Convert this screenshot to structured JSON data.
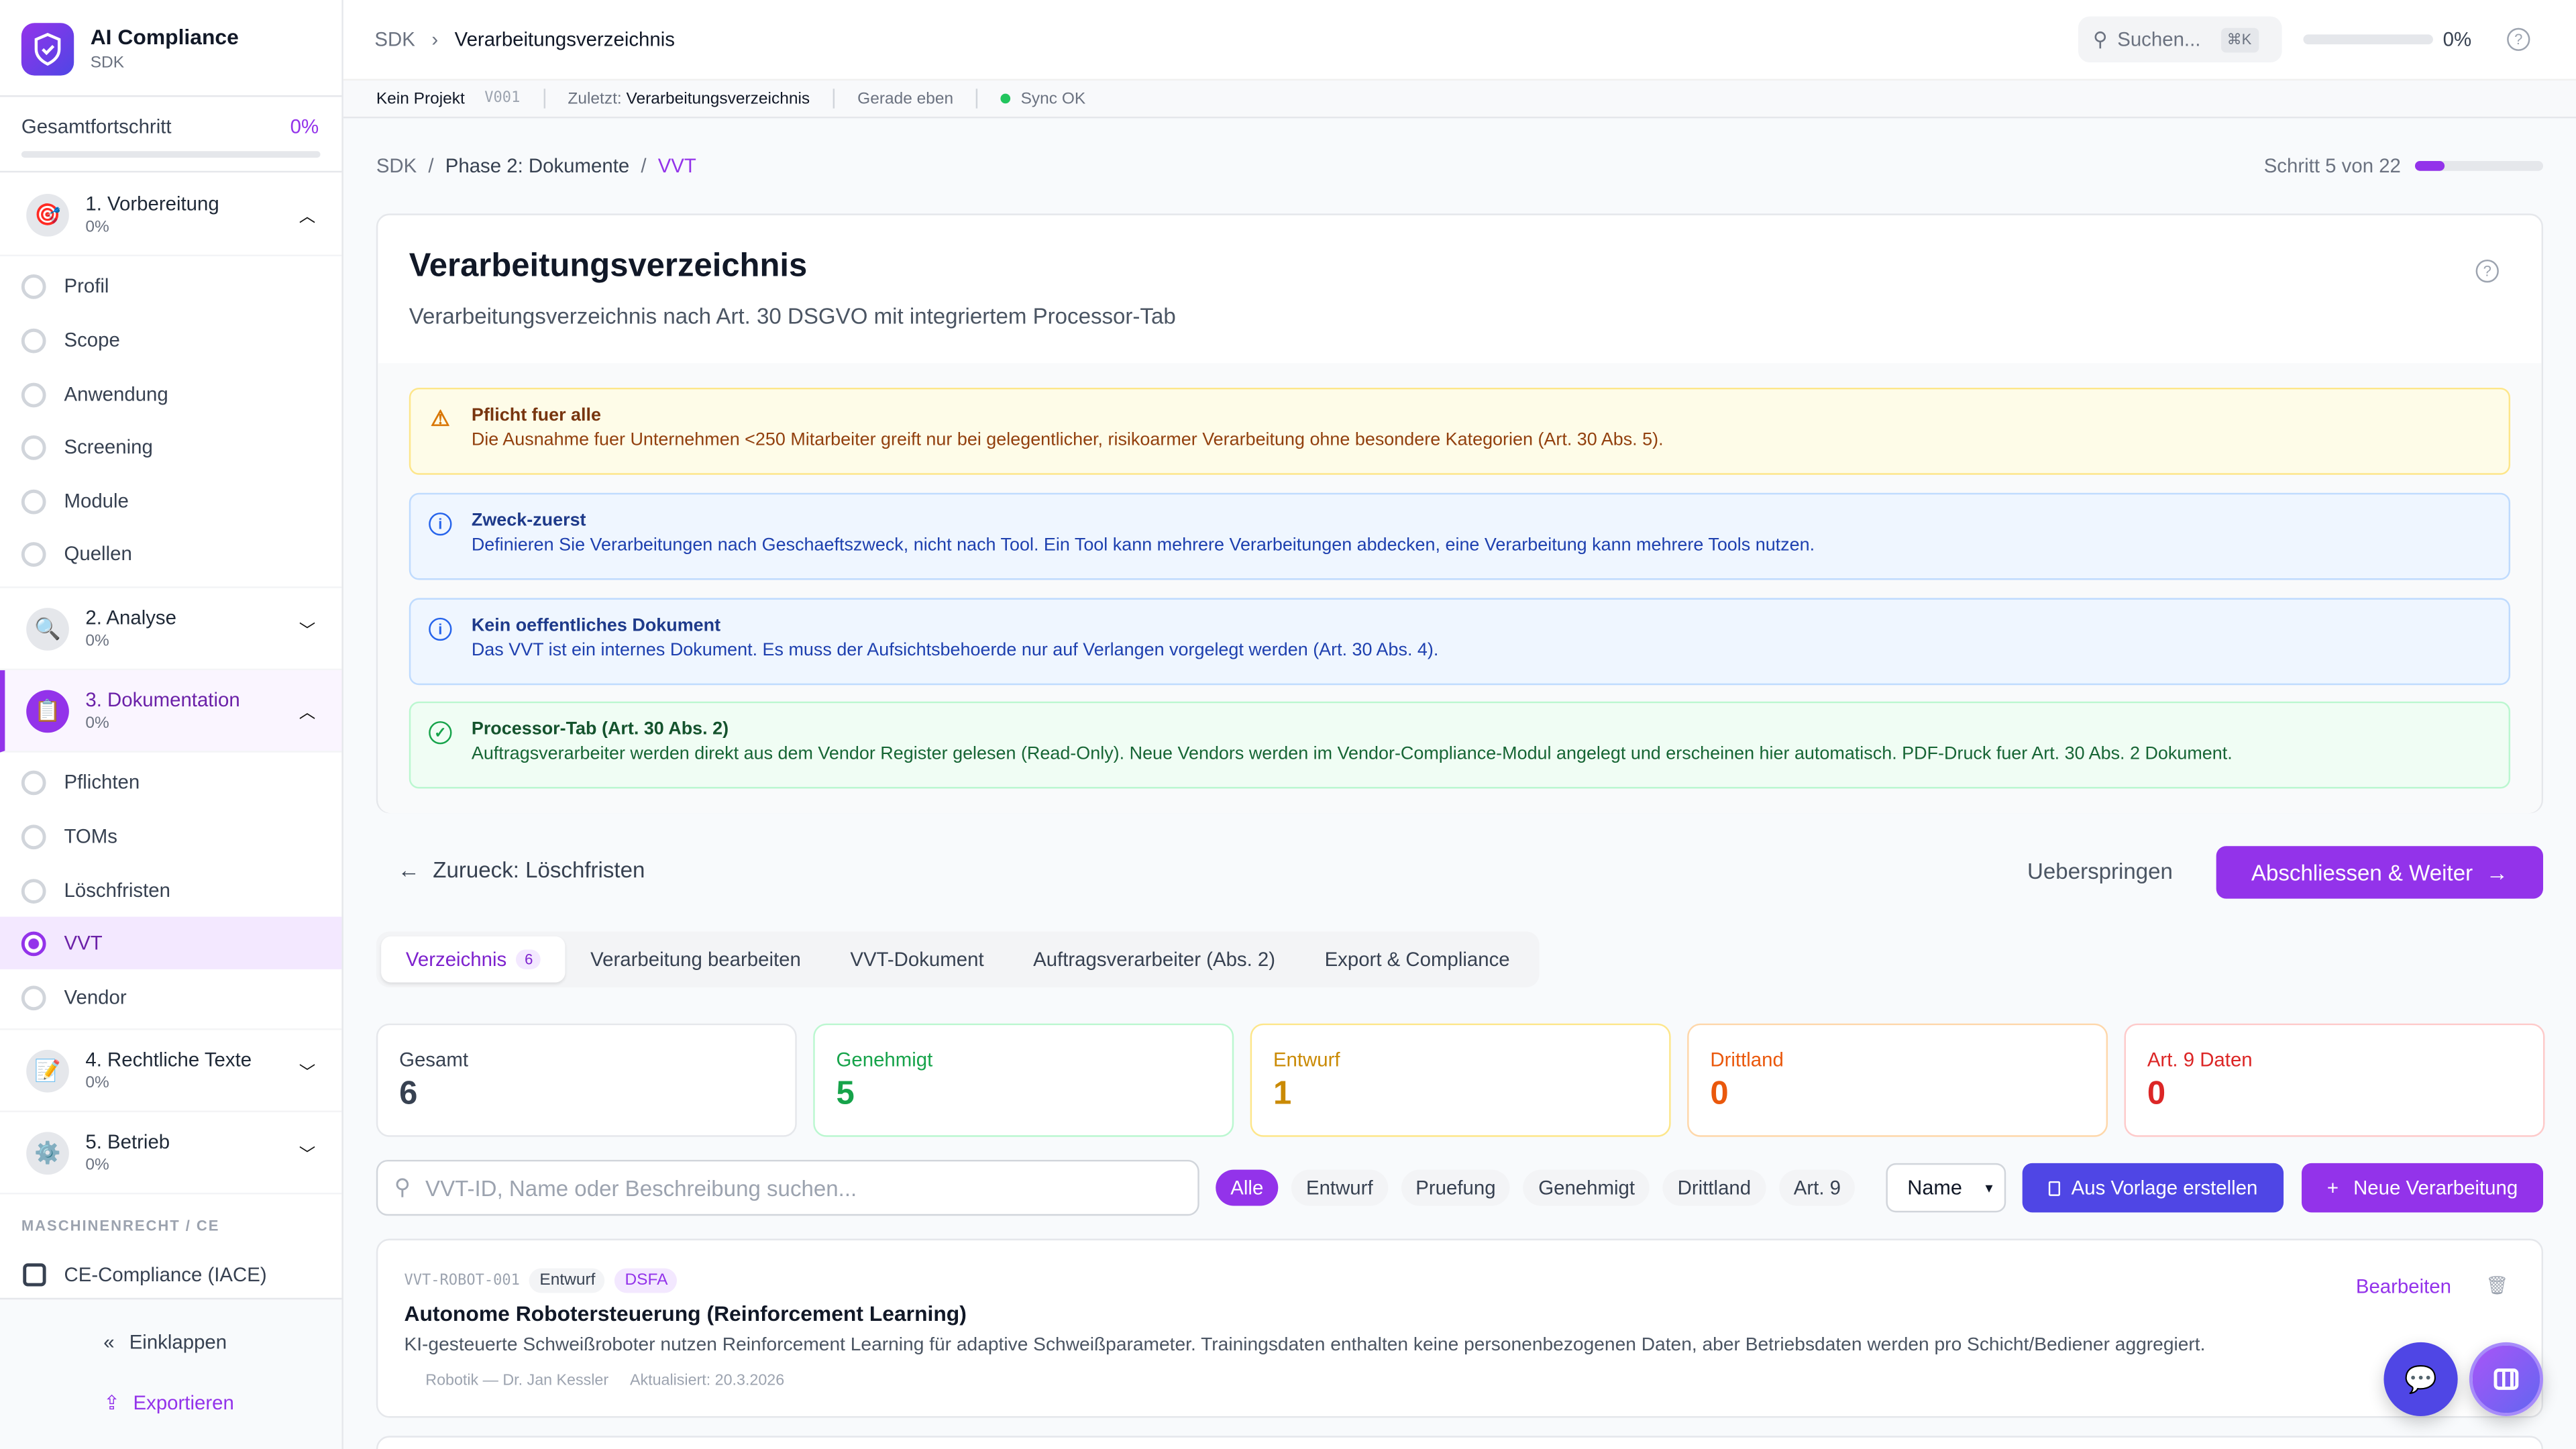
{
  "app": {
    "name": "AI Compliance",
    "sub": "SDK"
  },
  "sidebar": {
    "progress_label": "Gesamtfortschritt",
    "progress_value": "0%",
    "progress_fraction": 0,
    "phases": [
      {
        "label": "1. Vorbereitung",
        "pct": "0%",
        "icon": "target-icon",
        "expanded": true,
        "steps": [
          "Profil",
          "Scope",
          "Anwendung",
          "Screening",
          "Module",
          "Quellen"
        ]
      },
      {
        "label": "2. Analyse",
        "pct": "0%",
        "icon": "magnifier-icon",
        "expanded": false
      },
      {
        "label": "3. Dokumentation",
        "pct": "0%",
        "icon": "clipboard-icon",
        "expanded": true,
        "steps": [
          "Pflichten",
          "TOMs",
          "Löschfristen",
          "VVT",
          "Vendor"
        ]
      },
      {
        "label": "4. Rechtliche Texte",
        "pct": "0%",
        "icon": "pencil-icon",
        "expanded": false
      },
      {
        "label": "5. Betrieb",
        "pct": "0%",
        "icon": "gear-icon",
        "expanded": false
      }
    ],
    "active_step": "VVT",
    "section_label": "MASCHINENRECHT / CE",
    "ce_item": "CE-Compliance (IACE)",
    "collapse": "Einklappen",
    "export": "Exportieren"
  },
  "header": {
    "crumb_root": "SDK",
    "crumb_current": "Verarbeitungsverzeichnis",
    "search_placeholder": "Suchen...",
    "shortcut": "⌘K",
    "progress": "0%",
    "progress_fraction": 0
  },
  "subbar": {
    "project": "Kein Projekt",
    "version": "V001",
    "last_label": "Zuletzt:",
    "last_value": "Verarbeitungsverzeichnis",
    "time": "Gerade eben",
    "sync": "Sync OK"
  },
  "breadcrumb": {
    "root": "SDK",
    "phase": "Phase 2: Dokumente",
    "current": "VVT",
    "step_text": "Schritt 5 von 22",
    "step_fraction": 0.227
  },
  "page": {
    "title": "Verarbeitungsverzeichnis",
    "subtitle": "Verarbeitungsverzeichnis nach Art. 30 DSGVO mit integriertem Processor-Tab"
  },
  "alerts": [
    {
      "title": "Pflicht fuer alle",
      "text": "Die Ausnahme fuer Unternehmen <250 Mitarbeiter greift nur bei gelegentlicher, risikoarmer Verarbeitung ohne besondere Kategorien (Art. 30 Abs. 5).",
      "type": "warning"
    },
    {
      "title": "Zweck-zuerst",
      "text": "Definieren Sie Verarbeitungen nach Geschaeftszweck, nicht nach Tool. Ein Tool kann mehrere Verarbeitungen abdecken, eine Verarbeitung kann mehrere Tools nutzen.",
      "type": "info"
    },
    {
      "title": "Kein oeffentliches Dokument",
      "text": "Das VVT ist ein internes Dokument. Es muss der Aufsichtsbehoerde nur auf Verlangen vorgelegt werden (Art. 30 Abs. 4).",
      "type": "info"
    },
    {
      "title": "Processor-Tab (Art. 30 Abs. 2)",
      "text": "Auftragsverarbeiter werden direkt aus dem Vendor Register gelesen (Read-Only). Neue Vendors werden im Vendor-Compliance-Modul angelegt und erscheinen hier automatisch. PDF-Druck fuer Art. 30 Abs. 2 Dokument.",
      "type": "success"
    }
  ],
  "nav": {
    "back": "Zurueck: Löschfristen",
    "skip": "Ueberspringen",
    "next": "Abschliessen & Weiter"
  },
  "tabs": [
    {
      "label": "Verzeichnis",
      "count": "6"
    },
    {
      "label": "Verarbeitung bearbeiten"
    },
    {
      "label": "VVT-Dokument"
    },
    {
      "label": "Auftragsverarbeiter (Abs. 2)"
    },
    {
      "label": "Export & Compliance"
    }
  ],
  "stats": [
    {
      "label": "Gesamt",
      "value": "6",
      "color": "#374151"
    },
    {
      "label": "Genehmigt",
      "value": "5",
      "color": "#16a34a"
    },
    {
      "label": "Entwurf",
      "value": "1",
      "color": "#ca8a04"
    },
    {
      "label": "Drittland",
      "value": "0",
      "color": "#ea580c"
    },
    {
      "label": "Art. 9 Daten",
      "value": "0",
      "color": "#dc2626"
    }
  ],
  "filters": {
    "search_placeholder": "VVT-ID, Name oder Beschreibung suchen...",
    "chips": [
      "Alle",
      "Entwurf",
      "Pruefung",
      "Genehmigt",
      "Drittland",
      "Art. 9"
    ],
    "sort": "Name",
    "template_btn": "Aus Vorlage erstellen",
    "new_btn": "Neue Verarbeitung"
  },
  "items": [
    {
      "id": "VVT-ROBOT-001",
      "status": "Entwurf",
      "tag": "DSFA",
      "title": "Autonome Robotersteuerung (Reinforcement Learning)",
      "desc": "KI-gesteuerte Schweißroboter nutzen Reinforcement Learning für adaptive Schweißparameter. Trainingsdaten enthalten keine personenbezogenen Daten, aber Betriebsdaten werden pro Schicht/Bediener aggregiert.",
      "owner": "Robotik — Dr. Jan Kessler",
      "updated": "Aktualisiert: 20.3.2026",
      "edit": "Bearbeiten"
    }
  ],
  "colors": {
    "accent": "#9333ea",
    "indigo": "#4f46e5"
  }
}
